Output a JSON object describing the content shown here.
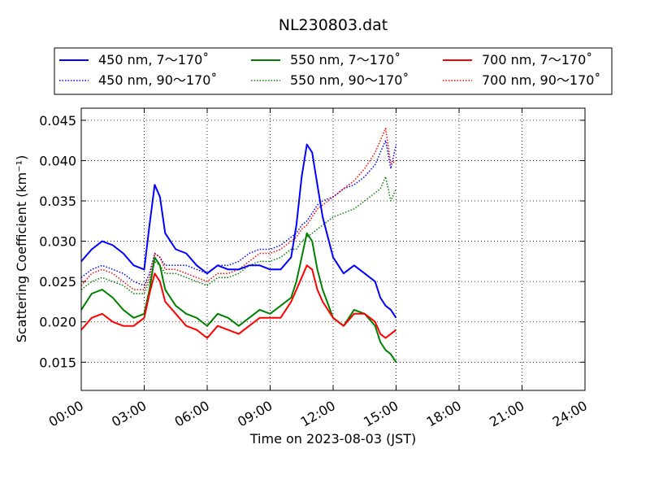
{
  "chart_data": {
    "type": "line",
    "title": "NL230803.dat",
    "xlabel": "Time on 2023-08-03 (JST)",
    "ylabel": "Scattering Coefficient (km⁻¹)",
    "xlim": [
      0,
      24
    ],
    "ylim": [
      0.0115,
      0.0465
    ],
    "x_ticks": [
      "00:00",
      "03:00",
      "06:00",
      "09:00",
      "12:00",
      "15:00",
      "18:00",
      "21:00",
      "24:00"
    ],
    "y_ticks": [
      "0.015",
      "0.020",
      "0.025",
      "0.030",
      "0.035",
      "0.040",
      "0.045"
    ],
    "grid": true,
    "legend_position": "top",
    "x": [
      0.0,
      0.5,
      1.0,
      1.5,
      2.0,
      2.5,
      3.0,
      3.25,
      3.5,
      3.75,
      4.0,
      4.5,
      5.0,
      5.5,
      6.0,
      6.5,
      7.0,
      7.5,
      8.0,
      8.5,
      9.0,
      9.5,
      10.0,
      10.25,
      10.5,
      10.75,
      11.0,
      11.25,
      11.5,
      12.0,
      12.5,
      13.0,
      13.5,
      14.0,
      14.25,
      14.5,
      14.75,
      15.0
    ],
    "series": [
      {
        "name": "450 nm, 7～170˚",
        "color": "#0000ff",
        "style": "solid",
        "values": [
          0.0275,
          0.029,
          0.03,
          0.0295,
          0.0285,
          0.027,
          0.0265,
          0.032,
          0.037,
          0.0355,
          0.031,
          0.029,
          0.0285,
          0.027,
          0.026,
          0.027,
          0.0265,
          0.0265,
          0.027,
          0.027,
          0.0265,
          0.0265,
          0.028,
          0.032,
          0.038,
          0.042,
          0.041,
          0.037,
          0.033,
          0.028,
          0.026,
          0.027,
          0.026,
          0.025,
          0.023,
          0.022,
          0.0215,
          0.0205
        ]
      },
      {
        "name": "550 nm, 7～170˚",
        "color": "#008000",
        "style": "solid",
        "values": [
          0.0215,
          0.0235,
          0.024,
          0.023,
          0.0215,
          0.0205,
          0.021,
          0.024,
          0.028,
          0.027,
          0.024,
          0.022,
          0.021,
          0.0205,
          0.0195,
          0.021,
          0.0205,
          0.0195,
          0.0205,
          0.0215,
          0.021,
          0.022,
          0.023,
          0.025,
          0.028,
          0.031,
          0.03,
          0.0265,
          0.024,
          0.0205,
          0.0195,
          0.0215,
          0.021,
          0.0195,
          0.0175,
          0.0165,
          0.016,
          0.015
        ]
      },
      {
        "name": "700 nm, 7～170˚",
        "color": "#ff0000",
        "style": "solid",
        "values": [
          0.019,
          0.0205,
          0.021,
          0.02,
          0.0195,
          0.0195,
          0.0205,
          0.0235,
          0.026,
          0.025,
          0.0225,
          0.021,
          0.0195,
          0.019,
          0.018,
          0.0195,
          0.019,
          0.0185,
          0.0195,
          0.0205,
          0.0205,
          0.0205,
          0.0225,
          0.024,
          0.0255,
          0.027,
          0.0265,
          0.024,
          0.0225,
          0.0205,
          0.0195,
          0.021,
          0.021,
          0.02,
          0.0185,
          0.018,
          0.0185,
          0.019
        ]
      },
      {
        "name": "450 nm, 90～170˚",
        "color": "#0000ff",
        "style": "dotted",
        "values": [
          0.0255,
          0.0265,
          0.027,
          0.0265,
          0.026,
          0.025,
          0.0245,
          0.026,
          0.0285,
          0.028,
          0.027,
          0.027,
          0.027,
          0.0265,
          0.026,
          0.027,
          0.027,
          0.0275,
          0.0285,
          0.029,
          0.029,
          0.0295,
          0.0305,
          0.031,
          0.032,
          0.0325,
          0.0335,
          0.0345,
          0.035,
          0.0355,
          0.0365,
          0.037,
          0.038,
          0.0395,
          0.041,
          0.0425,
          0.039,
          0.042
        ]
      },
      {
        "name": "550 nm, 90～170˚",
        "color": "#008000",
        "style": "dotted",
        "values": [
          0.024,
          0.025,
          0.0255,
          0.025,
          0.0245,
          0.0235,
          0.0235,
          0.025,
          0.0275,
          0.027,
          0.026,
          0.026,
          0.0255,
          0.025,
          0.0245,
          0.0255,
          0.0255,
          0.026,
          0.027,
          0.0275,
          0.0275,
          0.028,
          0.029,
          0.029,
          0.03,
          0.0305,
          0.031,
          0.0315,
          0.032,
          0.033,
          0.0335,
          0.034,
          0.035,
          0.036,
          0.0365,
          0.038,
          0.035,
          0.0365
        ]
      },
      {
        "name": "700 nm, 90～170˚",
        "color": "#ff0000",
        "style": "dotted",
        "values": [
          0.0245,
          0.026,
          0.0265,
          0.026,
          0.025,
          0.024,
          0.024,
          0.0255,
          0.0285,
          0.028,
          0.0265,
          0.0265,
          0.026,
          0.0255,
          0.025,
          0.026,
          0.026,
          0.0265,
          0.0275,
          0.0285,
          0.0285,
          0.029,
          0.03,
          0.0305,
          0.0315,
          0.032,
          0.033,
          0.034,
          0.0345,
          0.0355,
          0.0365,
          0.0375,
          0.039,
          0.041,
          0.0425,
          0.044,
          0.0395,
          0.04
        ]
      }
    ],
    "legend_order": [
      0,
      1,
      2,
      3,
      4,
      5
    ]
  }
}
